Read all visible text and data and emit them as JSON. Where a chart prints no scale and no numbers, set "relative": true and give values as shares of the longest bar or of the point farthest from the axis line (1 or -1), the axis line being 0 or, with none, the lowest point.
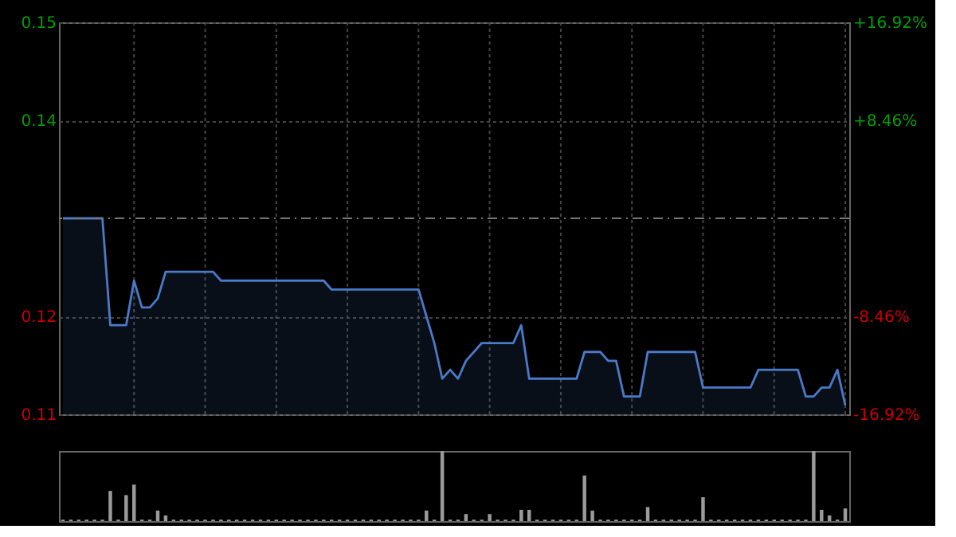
{
  "chart_data": [
    {
      "type": "area",
      "categories": [
        null,
        null,
        null,
        null,
        null,
        null,
        null,
        null,
        null,
        null,
        null,
        null,
        null,
        null,
        null,
        null,
        null,
        null,
        null,
        null,
        null,
        null,
        null,
        null,
        null,
        null,
        null,
        null,
        null,
        null,
        null,
        null,
        null,
        null,
        null,
        null,
        null,
        null,
        null,
        null,
        null,
        null,
        null,
        null,
        null,
        null,
        null,
        null,
        null,
        null,
        null,
        null,
        null,
        null,
        null,
        null,
        null,
        null,
        null,
        null,
        null,
        null,
        null,
        null,
        null,
        null,
        null,
        null,
        null,
        null,
        null,
        null,
        null,
        null,
        null,
        null,
        null,
        null,
        null,
        null,
        null,
        null,
        null,
        null,
        null,
        null,
        null,
        null,
        null,
        null,
        null,
        null,
        null,
        null,
        null,
        null,
        null,
        null,
        null,
        null
      ],
      "series": [
        {
          "color": "#4a7ac8",
          "values": [
            0.13,
            0.13,
            0.13,
            0.13,
            0.13,
            0.13,
            0.118,
            0.118,
            0.118,
            0.123,
            0.12,
            0.12,
            0.121,
            0.124,
            0.124,
            0.124,
            0.124,
            0.124,
            0.124,
            0.124,
            0.123,
            0.123,
            0.123,
            0.123,
            0.123,
            0.123,
            0.123,
            0.123,
            0.123,
            0.123,
            0.123,
            0.123,
            0.123,
            0.123,
            0.122,
            0.122,
            0.122,
            0.122,
            0.122,
            0.122,
            0.122,
            0.122,
            0.122,
            0.122,
            0.122,
            0.122,
            0.119,
            0.116,
            0.112,
            0.113,
            0.112,
            0.114,
            0.115,
            0.116,
            0.116,
            0.116,
            0.116,
            0.116,
            0.118,
            0.112,
            0.112,
            0.112,
            0.112,
            0.112,
            0.112,
            0.112,
            0.115,
            0.115,
            0.115,
            0.114,
            0.114,
            0.11,
            0.11,
            0.11,
            0.115,
            0.115,
            0.115,
            0.115,
            0.115,
            0.115,
            0.115,
            0.111,
            0.111,
            0.111,
            0.111,
            0.111,
            0.111,
            0.111,
            0.113,
            0.113,
            0.113,
            0.113,
            0.113,
            0.113,
            0.11,
            0.11,
            0.111,
            0.111,
            0.113,
            0.109
          ]
        }
      ],
      "ylim": [
        0.108,
        0.152
      ],
      "yticks": [
        {
          "value": 0.152,
          "label": "0.15"
        },
        {
          "value": 0.141,
          "label": "0.14"
        },
        {
          "value": 0.119,
          "label": "0.12"
        },
        {
          "value": 0.108,
          "label": "0.11"
        }
      ],
      "y2lim": [
        -16.92,
        16.92
      ],
      "y2ticks": [
        {
          "value": 16.92,
          "label": "+16.92%"
        },
        {
          "value": 8.46,
          "label": "+8.46%"
        },
        {
          "value": -8.46,
          "label": "-8.46%"
        },
        {
          "value": -16.92,
          "label": "-16.92%"
        }
      ],
      "ref_lines": [
        {
          "axis": "y2",
          "value": 0,
          "line_style": "dashed"
        }
      ],
      "grid": true,
      "tick_labels": "y"
    },
    {
      "type": "bar",
      "relative": true,
      "categories": [
        null,
        null,
        null,
        null,
        null,
        null,
        null,
        null,
        null,
        null,
        null,
        null,
        null,
        null,
        null,
        null,
        null,
        null,
        null,
        null,
        null,
        null,
        null,
        null,
        null,
        null,
        null,
        null,
        null,
        null,
        null,
        null,
        null,
        null,
        null,
        null,
        null,
        null,
        null,
        null,
        null,
        null,
        null,
        null,
        null,
        null,
        null,
        null,
        null,
        null,
        null,
        null,
        null,
        null,
        null,
        null,
        null,
        null,
        null,
        null,
        null,
        null,
        null,
        null,
        null,
        null,
        null,
        null,
        null,
        null,
        null,
        null,
        null,
        null,
        null,
        null,
        null,
        null,
        null,
        null,
        null,
        null,
        null,
        null,
        null,
        null,
        null,
        null,
        null,
        null,
        null,
        null,
        null,
        null,
        null,
        null,
        null,
        null,
        null,
        null
      ],
      "series": [
        {
          "color": "#9a9a9a",
          "values": [
            0.02,
            0.02,
            0.02,
            0.02,
            0.02,
            0.02,
            0.43,
            0.02,
            0.37,
            0.52,
            0.02,
            0.02,
            0.15,
            0.08,
            0.02,
            0.02,
            0.02,
            0.02,
            0.02,
            0.02,
            0.02,
            0.02,
            0.02,
            0.02,
            0.02,
            0.02,
            0.02,
            0.02,
            0.02,
            0.02,
            0.02,
            0.02,
            0.02,
            0.02,
            0.02,
            0.02,
            0.02,
            0.02,
            0.02,
            0.02,
            0.02,
            0.02,
            0.02,
            0.02,
            0.02,
            0.02,
            0.15,
            0.02,
            1,
            0.02,
            0.02,
            0.1,
            0.02,
            0.02,
            0.1,
            0.02,
            0.02,
            0.02,
            0.16,
            0.16,
            0.02,
            0.02,
            0.02,
            0.02,
            0.02,
            0.02,
            0.65,
            0.15,
            0.02,
            0.02,
            0.02,
            0.02,
            0.02,
            0.02,
            0.2,
            0.02,
            0.02,
            0.02,
            0.02,
            0.02,
            0.02,
            0.34,
            0.02,
            0.02,
            0.02,
            0.02,
            0.02,
            0.02,
            0.02,
            0.02,
            0.02,
            0.02,
            0.02,
            0.02,
            0.02,
            1,
            0.16,
            0.08,
            0.02,
            0.18
          ]
        }
      ],
      "tick_labels": false
    }
  ]
}
